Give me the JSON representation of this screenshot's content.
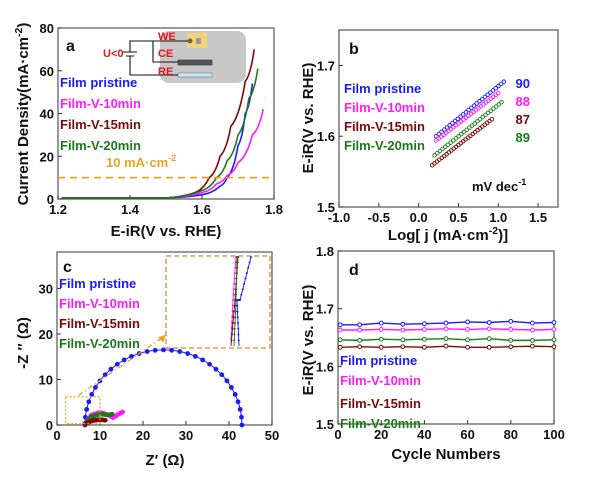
{
  "colors": {
    "pristine": "#1a1aff",
    "v10": "#ff1aff",
    "v15": "#7b0a0a",
    "v20": "#1a7a1a",
    "ref": "#e3a81e",
    "inset_box": "#d98a2b",
    "frame": "#555555"
  },
  "legend": [
    "Film pristine",
    "Film-V-10min",
    "Film-V-15min",
    "Film-V-20min"
  ],
  "chart_data": [
    {
      "panel": "a",
      "type": "line",
      "xlabel": "E-iR(V vs. RHE)",
      "ylabel": "Current Density(mA·cm⁻²)",
      "xlim": [
        1.2,
        1.8
      ],
      "ylim": [
        0,
        80
      ],
      "xticks": [
        "1.2",
        "1.4",
        "1.6",
        "1.8"
      ],
      "yticks": [
        "0",
        "20",
        "40",
        "60",
        "80"
      ],
      "reference_line": {
        "y": 10,
        "label": "10 mA·cm⁻²",
        "style": "dashed"
      },
      "inset_labels": {
        "we": "WE",
        "ce": "CE",
        "re": "RE",
        "voltage": "U<0"
      },
      "series": [
        {
          "name": "Film pristine",
          "x": [
            1.21,
            1.5,
            1.6,
            1.65,
            1.67,
            1.7,
            1.72,
            1.74
          ],
          "y": [
            0.5,
            0.5,
            2,
            6,
            10,
            25,
            40,
            54
          ]
        },
        {
          "name": "Film-V-10min",
          "x": [
            1.21,
            1.5,
            1.6,
            1.64,
            1.67,
            1.7,
            1.74,
            1.77
          ],
          "y": [
            0.5,
            0.5,
            3,
            7,
            11,
            17,
            30,
            42
          ]
        },
        {
          "name": "Film-V-15min",
          "x": [
            1.21,
            1.5,
            1.58,
            1.62,
            1.65,
            1.68,
            1.72,
            1.745
          ],
          "y": [
            0.5,
            0.5,
            3,
            10,
            20,
            34,
            55,
            70
          ]
        },
        {
          "name": "Film-V-20min",
          "x": [
            1.21,
            1.5,
            1.6,
            1.64,
            1.67,
            1.7,
            1.73,
            1.755
          ],
          "y": [
            0.5,
            0.5,
            4,
            10,
            18,
            30,
            47,
            61
          ]
        }
      ]
    },
    {
      "panel": "b",
      "type": "scatter",
      "xlabel": "Log[ j (mA·cm⁻²)]",
      "ylabel": "E-iR(V vs. RHE)",
      "xlim": [
        -1.0,
        1.75
      ],
      "ylim": [
        1.5,
        1.75
      ],
      "xticks": [
        "-1.0",
        "-0.5",
        "0.0",
        "0.5",
        "1.0",
        "1.5"
      ],
      "yticks": [
        "1.5",
        "1.6",
        "1.7"
      ],
      "unit_label": "mV dec⁻¹",
      "series": [
        {
          "name": "Film pristine",
          "tafel_slope": "90",
          "x": [
            0.22,
            1.07
          ],
          "y": [
            1.6,
            1.677
          ]
        },
        {
          "name": "Film-V-10min",
          "tafel_slope": "88",
          "x": [
            0.22,
            1.0
          ],
          "y": [
            1.594,
            1.661
          ]
        },
        {
          "name": "Film-V-15min",
          "tafel_slope": "87",
          "x": [
            0.17,
            0.92
          ],
          "y": [
            1.559,
            1.624
          ]
        },
        {
          "name": "Film-V-20min",
          "tafel_slope": "89",
          "x": [
            0.2,
            1.04
          ],
          "y": [
            1.573,
            1.648
          ]
        }
      ]
    },
    {
      "panel": "c",
      "type": "scatter",
      "xlabel": "Z′ (Ω)",
      "ylabel": "-Z ″ (Ω)",
      "xlim": [
        0,
        50
      ],
      "ylim": [
        0,
        38
      ],
      "xticks": [
        "0",
        "10",
        "20",
        "30",
        "40",
        "50"
      ],
      "yticks": [
        "0",
        "10",
        "20",
        "30"
      ],
      "series": [
        {
          "name": "Film pristine",
          "semicircle": {
            "x_start": 6.5,
            "x_end": 43,
            "peak": 16.5
          }
        },
        {
          "name": "Film-V-10min",
          "x": [
            6.5,
            8,
            10,
            12,
            13,
            14,
            15.5
          ],
          "y": [
            0.3,
            2.2,
            2.8,
            2.2,
            1.6,
            2.2,
            3
          ]
        },
        {
          "name": "Film-V-15min",
          "x": [
            6.5,
            8,
            10,
            11.5
          ],
          "y": [
            0.2,
            0.9,
            1.2,
            1.0
          ]
        },
        {
          "name": "Film-V-20min",
          "x": [
            6.5,
            8,
            10,
            12,
            13
          ],
          "y": [
            0.3,
            1.8,
            2.4,
            2.2,
            2.4
          ]
        }
      ]
    },
    {
      "panel": "d",
      "type": "line",
      "xlabel": "Cycle Numbers",
      "ylabel": "E-iR(V vs. RHE)",
      "xlim": [
        0,
        100
      ],
      "ylim": [
        1.5,
        1.8
      ],
      "xticks": [
        "0",
        "20",
        "40",
        "60",
        "80",
        "100"
      ],
      "yticks": [
        "1.5",
        "1.6",
        "1.7",
        "1.8"
      ],
      "x": [
        1,
        10,
        20,
        30,
        40,
        50,
        60,
        70,
        80,
        90,
        100
      ],
      "series": [
        {
          "name": "Film pristine",
          "y": [
            1.672,
            1.672,
            1.675,
            1.673,
            1.674,
            1.675,
            1.677,
            1.676,
            1.678,
            1.675,
            1.676
          ]
        },
        {
          "name": "Film-V-10min",
          "y": [
            1.663,
            1.663,
            1.664,
            1.663,
            1.664,
            1.665,
            1.664,
            1.665,
            1.664,
            1.663,
            1.664
          ]
        },
        {
          "name": "Film-V-15min",
          "y": [
            1.633,
            1.634,
            1.633,
            1.634,
            1.633,
            1.635,
            1.633,
            1.633,
            1.634,
            1.635,
            1.634
          ]
        },
        {
          "name": "Film-V-20min",
          "y": [
            1.646,
            1.645,
            1.647,
            1.646,
            1.647,
            1.648,
            1.646,
            1.648,
            1.645,
            1.645,
            1.646
          ]
        }
      ]
    }
  ]
}
